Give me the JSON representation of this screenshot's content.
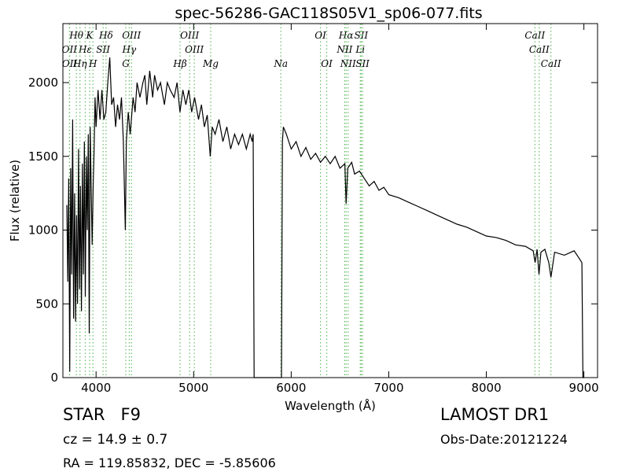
{
  "chart_data": {
    "type": "line",
    "title": "spec-56286-GAC118S05V1_sp06-077.fits",
    "xlabel": "Wavelength (Å)",
    "ylabel": "Flux (relative)",
    "xlim": [
      3660,
      9140
    ],
    "ylim": [
      0,
      2400
    ],
    "xticks": [
      4000,
      5000,
      6000,
      7000,
      8000,
      9000
    ],
    "yticks": [
      0,
      500,
      1000,
      1500,
      2000
    ],
    "x": [
      3700,
      3710,
      3720,
      3730,
      3740,
      3750,
      3760,
      3770,
      3780,
      3790,
      3800,
      3810,
      3820,
      3830,
      3840,
      3850,
      3860,
      3870,
      3880,
      3890,
      3900,
      3910,
      3920,
      3930,
      3940,
      3960,
      3970,
      3980,
      3990,
      4000,
      4020,
      4040,
      4060,
      4080,
      4100,
      4120,
      4140,
      4160,
      4180,
      4200,
      4220,
      4240,
      4260,
      4280,
      4300,
      4310,
      4330,
      4350,
      4380,
      4400,
      4420,
      4450,
      4480,
      4500,
      4520,
      4550,
      4580,
      4600,
      4630,
      4660,
      4700,
      4730,
      4760,
      4800,
      4830,
      4860,
      4890,
      4920,
      4950,
      4980,
      5010,
      5050,
      5080,
      5110,
      5140,
      5170,
      5190,
      5220,
      5260,
      5300,
      5340,
      5380,
      5420,
      5460,
      5500,
      5540,
      5580,
      5600,
      5610,
      5620,
      5900,
      5910,
      5920,
      5950,
      6000,
      6050,
      6100,
      6150,
      6200,
      6250,
      6300,
      6350,
      6400,
      6450,
      6500,
      6550,
      6563,
      6580,
      6620,
      6650,
      6700,
      6750,
      6800,
      6850,
      6900,
      6950,
      7000,
      7100,
      7200,
      7300,
      7400,
      7500,
      7600,
      7700,
      7800,
      7900,
      8000,
      8100,
      8200,
      8300,
      8400,
      8480,
      8500,
      8520,
      8540,
      8560,
      8600,
      8640,
      8662,
      8700,
      8800,
      8900,
      8950,
      8980,
      8990,
      9000
    ],
    "series": [
      {
        "color": "#000000",
        "values": [
          1170,
          650,
          1350,
          40,
          1420,
          700,
          1750,
          400,
          1250,
          380,
          1100,
          500,
          1550,
          600,
          1300,
          450,
          1450,
          700,
          1600,
          550,
          1500,
          1000,
          1650,
          300,
          1700,
          900,
          1300,
          1550,
          1900,
          1700,
          1950,
          1750,
          1950,
          1750,
          1800,
          2000,
          2170,
          1850,
          1900,
          1700,
          1850,
          1750,
          1900,
          1600,
          1000,
          1600,
          1800,
          1650,
          1900,
          1800,
          2000,
          1900,
          2000,
          2050,
          1850,
          2080,
          1900,
          2050,
          1950,
          2000,
          1850,
          2000,
          1950,
          1900,
          2000,
          1800,
          1950,
          1850,
          1950,
          1800,
          1900,
          1750,
          1850,
          1700,
          1780,
          1500,
          1700,
          1650,
          1750,
          1600,
          1700,
          1550,
          1650,
          1580,
          1650,
          1550,
          1650,
          1600,
          1650,
          0,
          0,
          1600,
          1700,
          1650,
          1550,
          1600,
          1500,
          1560,
          1480,
          1520,
          1460,
          1500,
          1450,
          1500,
          1420,
          1450,
          1180,
          1420,
          1460,
          1380,
          1400,
          1350,
          1300,
          1330,
          1270,
          1290,
          1240,
          1220,
          1190,
          1160,
          1130,
          1100,
          1070,
          1040,
          1020,
          990,
          960,
          950,
          930,
          900,
          890,
          860,
          780,
          870,
          700,
          850,
          870,
          780,
          680,
          850,
          830,
          860,
          810,
          780,
          0,
          0
        ]
      }
    ],
    "line_color": "#66bb66",
    "line_labels": [
      [
        {
          "label": "Hθ",
          "wavelength": 3798
        },
        {
          "label": "K",
          "wavelength": 3934
        },
        {
          "label": "Hδ",
          "wavelength": 4102
        },
        {
          "label": "OIII",
          "wavelength": 4363
        },
        {
          "label": "OIII",
          "wavelength": 4959
        },
        {
          "label": "OI",
          "wavelength": 6300
        },
        {
          "label": "Hα",
          "wavelength": 6563
        },
        {
          "label": "SII",
          "wavelength": 6717
        },
        {
          "label": "CaII",
          "wavelength": 8498
        }
      ],
      [
        {
          "label": "OII",
          "wavelength": 3727
        },
        {
          "label": "Hε",
          "wavelength": 3889
        },
        {
          "label": "SII",
          "wavelength": 4072
        },
        {
          "label": "Hγ",
          "wavelength": 4340
        },
        {
          "label": "OIII",
          "wavelength": 5007
        },
        {
          "label": "NII",
          "wavelength": 6548
        },
        {
          "label": "Li",
          "wavelength": 6708
        },
        {
          "label": "CaII",
          "wavelength": 8542
        }
      ],
      [
        {
          "label": "OII",
          "wavelength": 3729
        },
        {
          "label": "Hη",
          "wavelength": 3835
        },
        {
          "label": "H",
          "wavelength": 3968
        },
        {
          "label": "G",
          "wavelength": 4305
        },
        {
          "label": "Hβ",
          "wavelength": 4861
        },
        {
          "label": "Mg",
          "wavelength": 5175
        },
        {
          "label": "Na",
          "wavelength": 5894
        },
        {
          "label": "OI",
          "wavelength": 6364
        },
        {
          "label": "NII",
          "wavelength": 6583
        },
        {
          "label": "SII",
          "wavelength": 6731
        },
        {
          "label": "CaII",
          "wavelength": 8662
        }
      ]
    ],
    "annotations": {
      "class": "STAR   F9",
      "cz": "cz = 14.9 ± 0.7",
      "coords": "RA = 119.85832, DEC = -5.85606",
      "survey": "LAMOST DR1",
      "date": "Obs-Date:20121224"
    }
  }
}
